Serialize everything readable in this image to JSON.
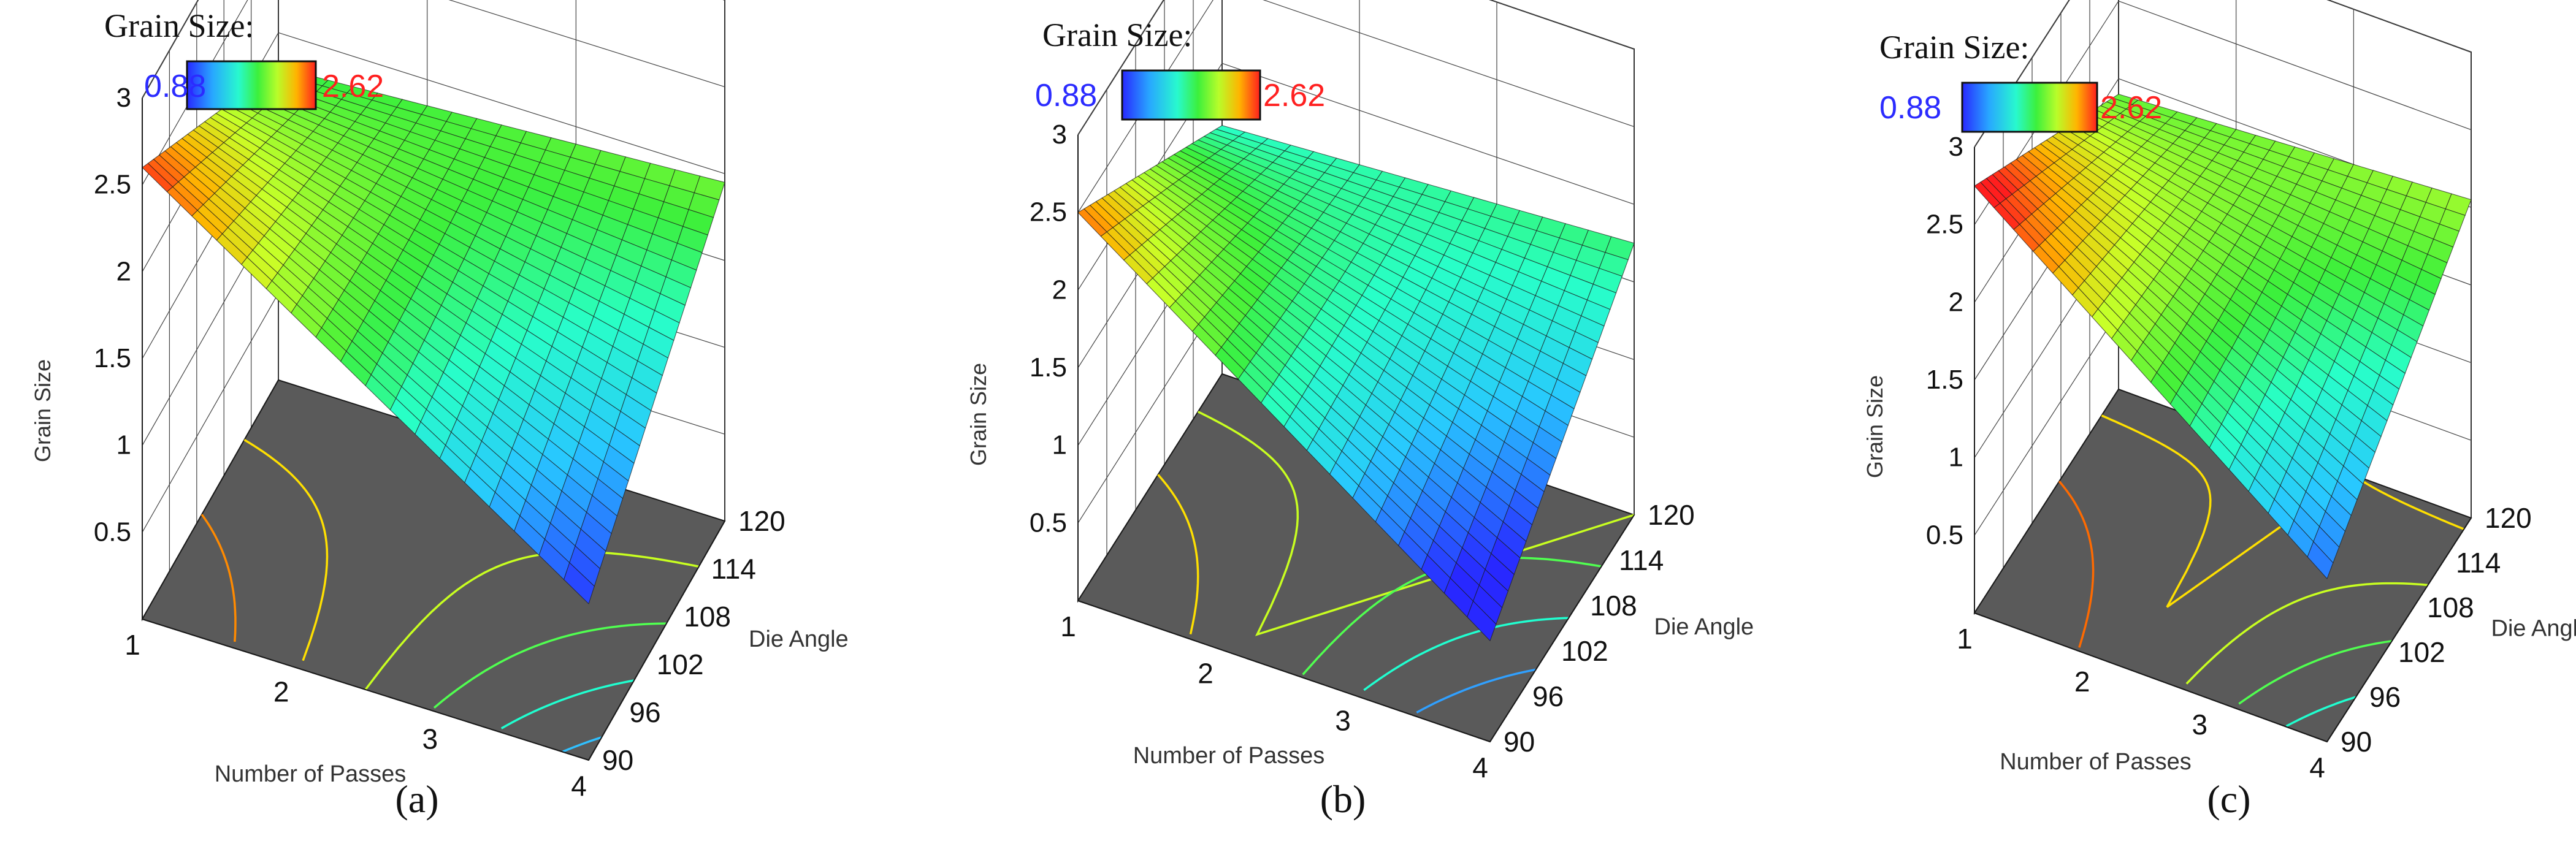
{
  "figure": {
    "panels": [
      {
        "id": "a",
        "caption": "(a)",
        "legend": {
          "title": "Grain Size:",
          "min": "0.88",
          "max": "2.62",
          "min_color": "#2b2bff",
          "max_color": "#ff2020"
        },
        "chart_data": {
          "type": "surface",
          "title": "Grain Size:",
          "xlabel": "Number of Passes",
          "ylabel": "Die Angle",
          "zlabel": "Grain Size",
          "x_ticks": [
            "1",
            "2",
            "3",
            "4"
          ],
          "y_ticks": [
            "90",
            "96",
            "102",
            "108",
            "114",
            "120"
          ],
          "z_ticks": [
            "0.5",
            "1",
            "1.5",
            "2",
            "2.5",
            "3"
          ],
          "xlim": [
            1,
            4
          ],
          "ylim": [
            90,
            120
          ],
          "zlim": [
            0,
            3
          ],
          "color_range": [
            0.88,
            2.62
          ],
          "corners": {
            "x1_y90": 2.6,
            "x1_y120": 1.8,
            "x4_y90": 0.9,
            "x4_y120": 1.95
          },
          "contours": [
            {
              "level": 2.25,
              "color": "#ff8a00"
            },
            {
              "level": 2.0,
              "color": "#ffe000"
            },
            {
              "level": 1.75,
              "color": "#c8ff20"
            },
            {
              "level": 1.5,
              "color": "#50ff50"
            },
            {
              "level": 1.25,
              "color": "#20ffd0"
            },
            {
              "level": 1.0,
              "color": "#30c0ff"
            }
          ]
        }
      },
      {
        "id": "b",
        "caption": "(b)",
        "legend": {
          "title": "Grain Size:",
          "min": "0.88",
          "max": "2.62",
          "min_color": "#2b2bff",
          "max_color": "#ff2020"
        },
        "chart_data": {
          "type": "surface",
          "title": "Grain Size:",
          "xlabel": "Number of Passes",
          "ylabel": "Die Angle",
          "zlabel": "Grain Size",
          "x_ticks": [
            "1",
            "2",
            "3",
            "4"
          ],
          "y_ticks": [
            "90",
            "96",
            "102",
            "108",
            "114",
            "120"
          ],
          "z_ticks": [
            "0.5",
            "1",
            "1.5",
            "2",
            "2.5",
            "3"
          ],
          "xlim": [
            1,
            4
          ],
          "ylim": [
            90,
            120
          ],
          "zlim": [
            0,
            3
          ],
          "color_range": [
            0.88,
            2.62
          ],
          "corners": {
            "x1_y90": 2.5,
            "x1_y120": 1.6,
            "x4_y90": 0.65,
            "x4_y120": 1.75
          },
          "contours": [
            {
              "level": 2.0,
              "color": "#ffe000"
            },
            {
              "level": 1.75,
              "color": "#c8ff20"
            },
            {
              "level": 1.5,
              "color": "#50ff50"
            },
            {
              "level": 1.25,
              "color": "#20ffd0"
            },
            {
              "level": 1.0,
              "color": "#30a0ff"
            }
          ]
        }
      },
      {
        "id": "c",
        "caption": "(c)",
        "legend": {
          "title": "Grain Size:",
          "min": "0.88",
          "max": "2.62",
          "min_color": "#2b2bff",
          "max_color": "#ff2020"
        },
        "chart_data": {
          "type": "surface",
          "title": "Grain Size:",
          "xlabel": "Number of Passes",
          "ylabel": "Die Angle",
          "zlabel": "Grain Size",
          "x_ticks": [
            "1",
            "2",
            "3",
            "4"
          ],
          "y_ticks": [
            "90",
            "96",
            "102",
            "108",
            "114",
            "120"
          ],
          "z_ticks": [
            "0.5",
            "1",
            "1.5",
            "2",
            "2.5",
            "3"
          ],
          "xlim": [
            1,
            4
          ],
          "ylim": [
            90,
            120
          ],
          "zlim": [
            0,
            3
          ],
          "color_range": [
            0.88,
            2.62
          ],
          "corners": {
            "x1_y90": 2.75,
            "x1_y120": 1.9,
            "x4_y90": 1.05,
            "x4_y120": 2.05
          },
          "contours": [
            {
              "level": 2.25,
              "color": "#ff6a00"
            },
            {
              "level": 2.0,
              "color": "#ffe000"
            },
            {
              "level": 1.75,
              "color": "#c8ff20"
            },
            {
              "level": 1.5,
              "color": "#50ff50"
            },
            {
              "level": 1.25,
              "color": "#20ffd0"
            }
          ]
        }
      }
    ]
  }
}
